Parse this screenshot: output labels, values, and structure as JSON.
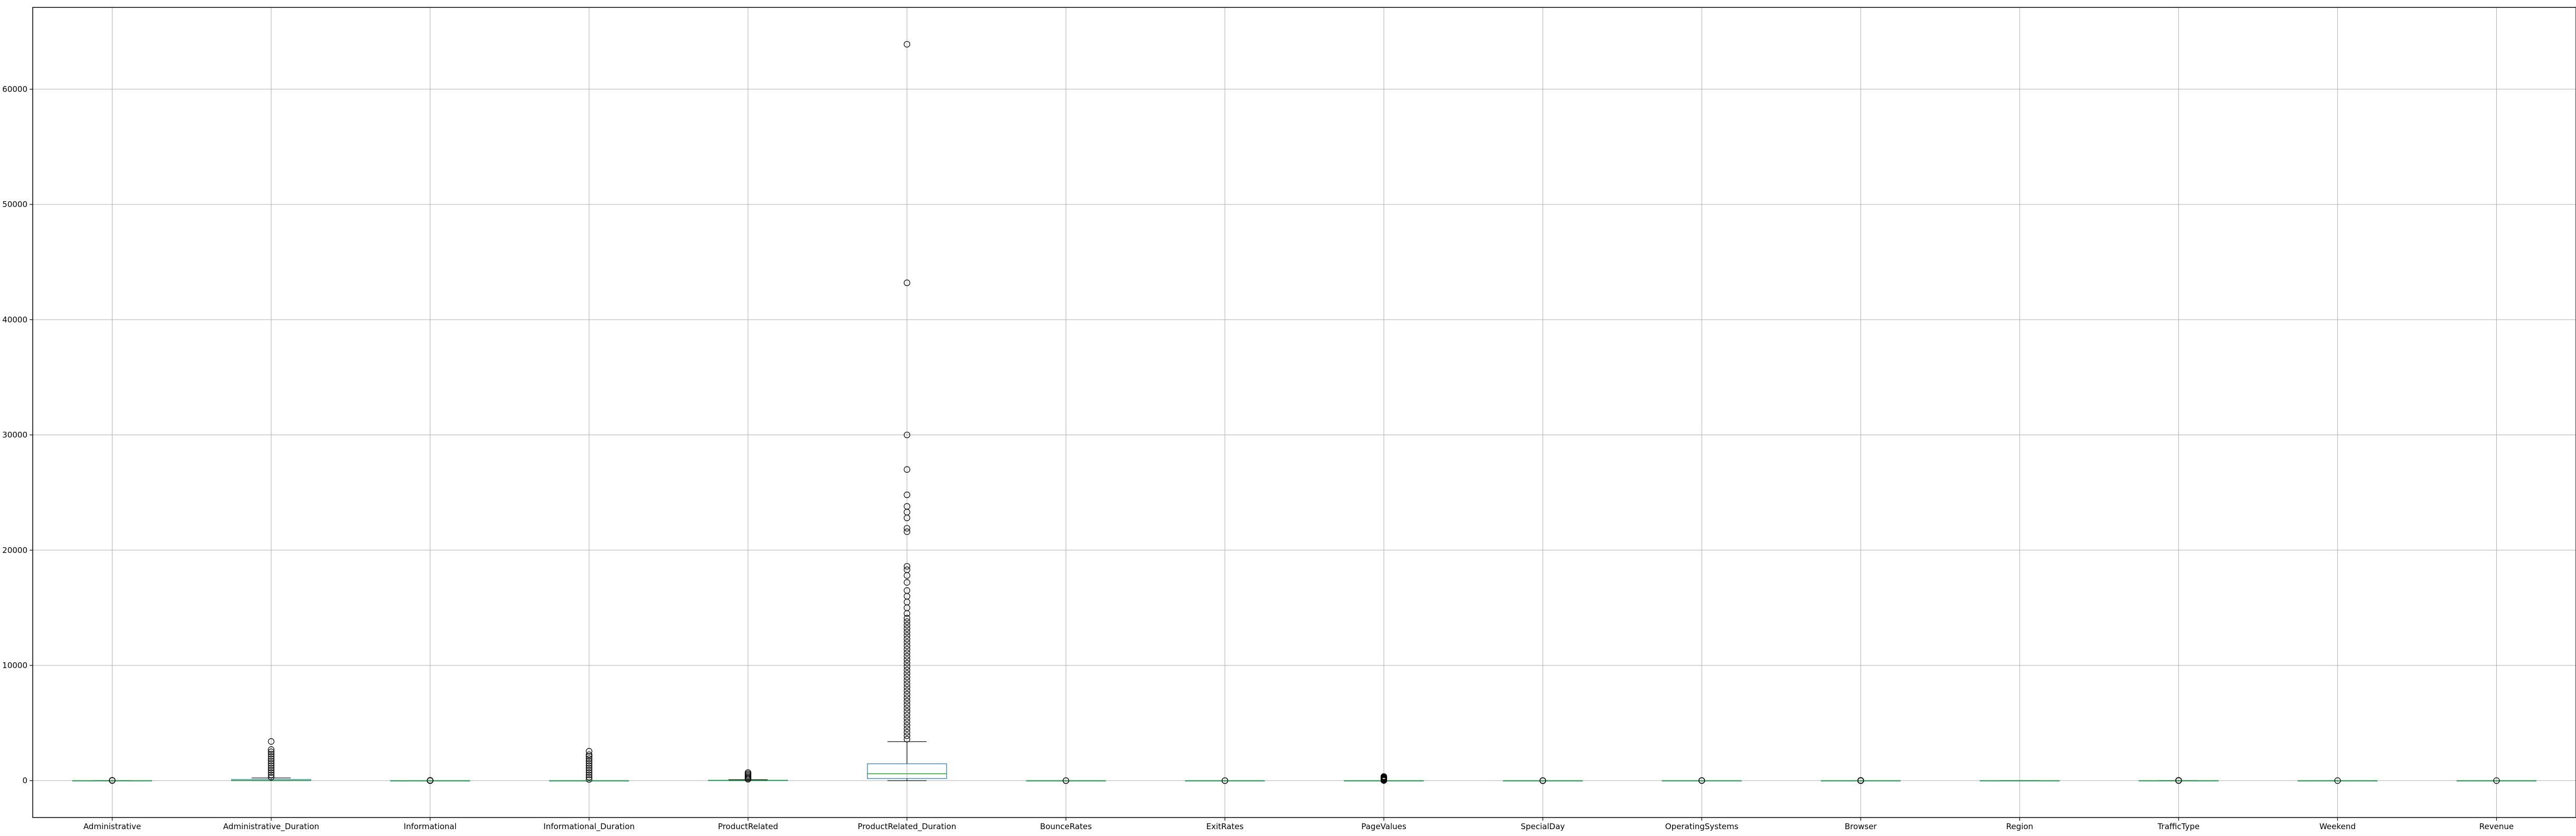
{
  "chart_data": {
    "type": "boxplot",
    "categories": [
      "Administrative",
      "Administrative_Duration",
      "Informational",
      "Informational_Duration",
      "ProductRelated",
      "ProductRelated_Duration",
      "BounceRates",
      "ExitRates",
      "PageValues",
      "SpecialDay",
      "OperatingSystems",
      "Browser",
      "Region",
      "TrafficType",
      "Weekend",
      "Revenue"
    ],
    "boxes": [
      {
        "q1": 0,
        "median": 1,
        "q3": 4,
        "whisker_low": 0,
        "whisker_high": 10,
        "outliers": [
          12,
          15,
          20,
          27
        ]
      },
      {
        "q1": 0,
        "median": 8,
        "q3": 94,
        "whisker_low": 0,
        "whisker_high": 235,
        "outliers": [
          300,
          500,
          700,
          900,
          1100,
          1300,
          1500,
          1700,
          1900,
          2100,
          2300,
          2500,
          2700,
          3400
        ]
      },
      {
        "q1": 0,
        "median": 0,
        "q3": 0,
        "whisker_low": 0,
        "whisker_high": 0,
        "outliers": [
          1,
          3,
          6,
          10,
          16,
          24
        ]
      },
      {
        "q1": 0,
        "median": 0,
        "q3": 0,
        "whisker_low": 0,
        "whisker_high": 0,
        "outliers": [
          100,
          300,
          500,
          700,
          900,
          1100,
          1300,
          1500,
          1700,
          1900,
          2100,
          2250,
          2550
        ]
      },
      {
        "q1": 7,
        "median": 18,
        "q3": 38,
        "whisker_low": 0,
        "whisker_high": 84,
        "outliers": [
          120,
          200,
          300,
          400,
          500,
          600,
          705
        ]
      },
      {
        "q1": 184,
        "median": 598,
        "q3": 1464,
        "whisker_low": 0,
        "whisker_high": 3380,
        "outliers": [
          3600,
          3900,
          4200,
          4500,
          4800,
          5100,
          5400,
          5700,
          6000,
          6300,
          6600,
          6900,
          7200,
          7500,
          7800,
          8100,
          8400,
          8700,
          9000,
          9300,
          9600,
          9900,
          10200,
          10500,
          10800,
          11100,
          11400,
          11700,
          12000,
          12300,
          12600,
          12900,
          13200,
          13500,
          13800,
          14100,
          14500,
          15000,
          15500,
          16000,
          16500,
          17200,
          17800,
          18300,
          18600,
          21600,
          21900,
          22800,
          23300,
          23800,
          24800,
          27000,
          30000,
          43200,
          63900
        ]
      },
      {
        "q1": 0,
        "median": 0,
        "q3": 0.02,
        "whisker_low": 0,
        "whisker_high": 0.05,
        "outliers": [
          0.1,
          0.2
        ]
      },
      {
        "q1": 0.014,
        "median": 0.025,
        "q3": 0.05,
        "whisker_low": 0,
        "whisker_high": 0.1,
        "outliers": [
          0.15,
          0.2
        ]
      },
      {
        "q1": 0,
        "median": 0,
        "q3": 0,
        "whisker_low": 0,
        "whisker_high": 0,
        "outliers": [
          10,
          40,
          80,
          120,
          160,
          200,
          240,
          280,
          320,
          361
        ]
      },
      {
        "q1": 0,
        "median": 0,
        "q3": 0,
        "whisker_low": 0,
        "whisker_high": 0,
        "outliers": [
          0.2,
          0.4,
          0.6,
          0.8,
          1
        ]
      },
      {
        "q1": 2,
        "median": 2,
        "q3": 3,
        "whisker_low": 1,
        "whisker_high": 4,
        "outliers": [
          5,
          6,
          7,
          8
        ]
      },
      {
        "q1": 2,
        "median": 2,
        "q3": 2,
        "whisker_low": 2,
        "whisker_high": 2,
        "outliers": [
          1,
          3,
          4,
          5,
          6,
          7,
          8,
          9,
          10,
          11,
          12,
          13
        ]
      },
      {
        "q1": 1,
        "median": 3,
        "q3": 4,
        "whisker_low": 1,
        "whisker_high": 9,
        "outliers": []
      },
      {
        "q1": 2,
        "median": 2,
        "q3": 4,
        "whisker_low": 1,
        "whisker_high": 7,
        "outliers": [
          8,
          10,
          12,
          14,
          16,
          18,
          20
        ]
      },
      {
        "q1": 0,
        "median": 0,
        "q3": 0,
        "whisker_low": 0,
        "whisker_high": 0,
        "outliers": [
          1
        ]
      },
      {
        "q1": 0,
        "median": 0,
        "q3": 0,
        "whisker_low": 0,
        "whisker_high": 0,
        "outliers": [
          1
        ]
      }
    ],
    "y_ticks": [
      0,
      10000,
      20000,
      30000,
      40000,
      50000,
      60000
    ],
    "ylim": [
      -3200,
      67100
    ],
    "grid": true,
    "legend": "none",
    "colors": {
      "box": "#1f77b4",
      "median": "#2ca02c",
      "whisker": "#000000",
      "outlier": "#000000",
      "grid": "#b0b0b0"
    }
  }
}
